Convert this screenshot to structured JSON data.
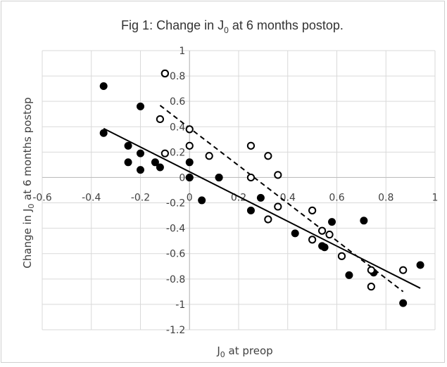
{
  "chart_data": {
    "type": "scatter",
    "title": {
      "main": "Fig 1: Change in J",
      "sub": "0",
      "rest": " at 6 months postop."
    },
    "xlabel": {
      "main": "J",
      "sub": "0",
      "rest": " at preop"
    },
    "ylabel": {
      "main": "Change in J",
      "sub": "0",
      "rest": " at 6 months postop"
    },
    "xlim": [
      -0.6,
      1
    ],
    "ylim": [
      -1.2,
      1
    ],
    "x_ticks": [
      "-0.6",
      "-0.4",
      "-0.2",
      "0",
      "0.2",
      "0.4",
      "0.6",
      "0.8",
      "1"
    ],
    "y_ticks": [
      "1",
      "0.8",
      "0.6",
      "0.4",
      "0.2",
      "0",
      "-0.2",
      "-0.4",
      "-0.6",
      "-0.8",
      "-1",
      "-1.2"
    ],
    "grid": true,
    "legend": "none",
    "series": [
      {
        "marker": "filled-circle",
        "color": "#000000",
        "trendline": "solid",
        "x": [
          -0.35,
          -0.35,
          -0.2,
          -0.25,
          -0.2,
          -0.25,
          -0.2,
          -0.14,
          -0.12,
          0.0,
          0.0,
          0.0,
          0.05,
          0.12,
          0.12,
          0.25,
          0.29,
          0.43,
          0.54,
          0.55,
          0.58,
          0.62,
          0.65,
          0.71,
          0.75,
          0.87,
          0.94
        ],
        "y": [
          0.72,
          0.35,
          0.56,
          0.25,
          0.19,
          0.12,
          0.06,
          0.12,
          0.08,
          0.12,
          0.0,
          0.0,
          -0.18,
          0.0,
          0.0,
          -0.26,
          -0.16,
          -0.44,
          -0.54,
          -0.55,
          -0.35,
          -0.62,
          -0.77,
          -0.34,
          -0.75,
          -0.99,
          -0.69
        ]
      },
      {
        "marker": "open-circle",
        "color": "#000000",
        "trendline": "dashed",
        "x": [
          -0.1,
          -0.1,
          -0.12,
          -0.1,
          0.0,
          0.0,
          0.08,
          0.25,
          0.25,
          0.32,
          0.36,
          0.36,
          0.32,
          0.5,
          0.5,
          0.54,
          0.57,
          0.62,
          0.74,
          0.74,
          0.87
        ],
        "y": [
          0.82,
          0.82,
          0.46,
          0.19,
          0.38,
          0.25,
          0.17,
          0.25,
          0.0,
          0.17,
          0.02,
          -0.23,
          -0.33,
          -0.26,
          -0.49,
          -0.42,
          -0.45,
          -0.62,
          -0.73,
          -0.86,
          -0.73
        ]
      }
    ]
  }
}
